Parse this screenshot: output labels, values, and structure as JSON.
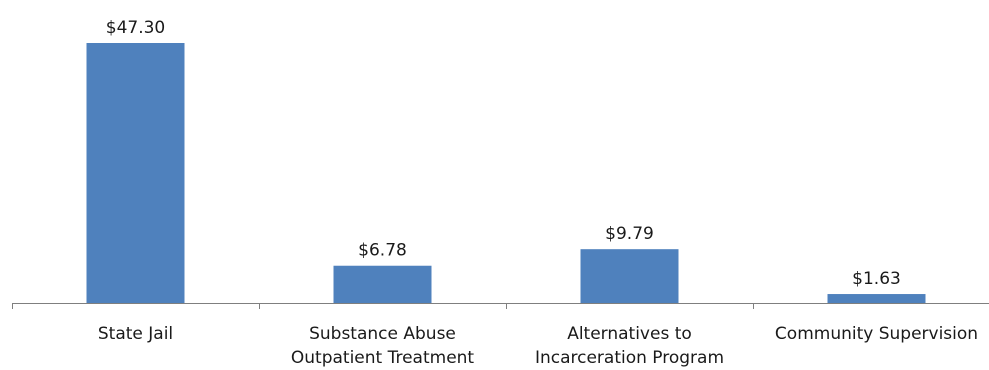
{
  "chart_data": {
    "type": "bar",
    "title": "",
    "xlabel": "",
    "ylabel": "",
    "categories": [
      [
        "State Jail"
      ],
      [
        "Substance Abuse",
        "Outpatient Treatment"
      ],
      [
        "Alternatives to",
        "Incarceration Program"
      ],
      [
        "Community Supervision"
      ]
    ],
    "values": [
      47.3,
      6.78,
      9.79,
      1.63
    ],
    "data_labels": [
      "$47.30",
      "$6.78",
      "$9.79",
      "$1.63"
    ],
    "ylim": [
      0,
      47.3
    ],
    "grid": false,
    "legend": "none",
    "colors": {
      "bar": "#4F81BD",
      "axis": "#7f7f7f",
      "text": "#1a1a1a"
    }
  }
}
